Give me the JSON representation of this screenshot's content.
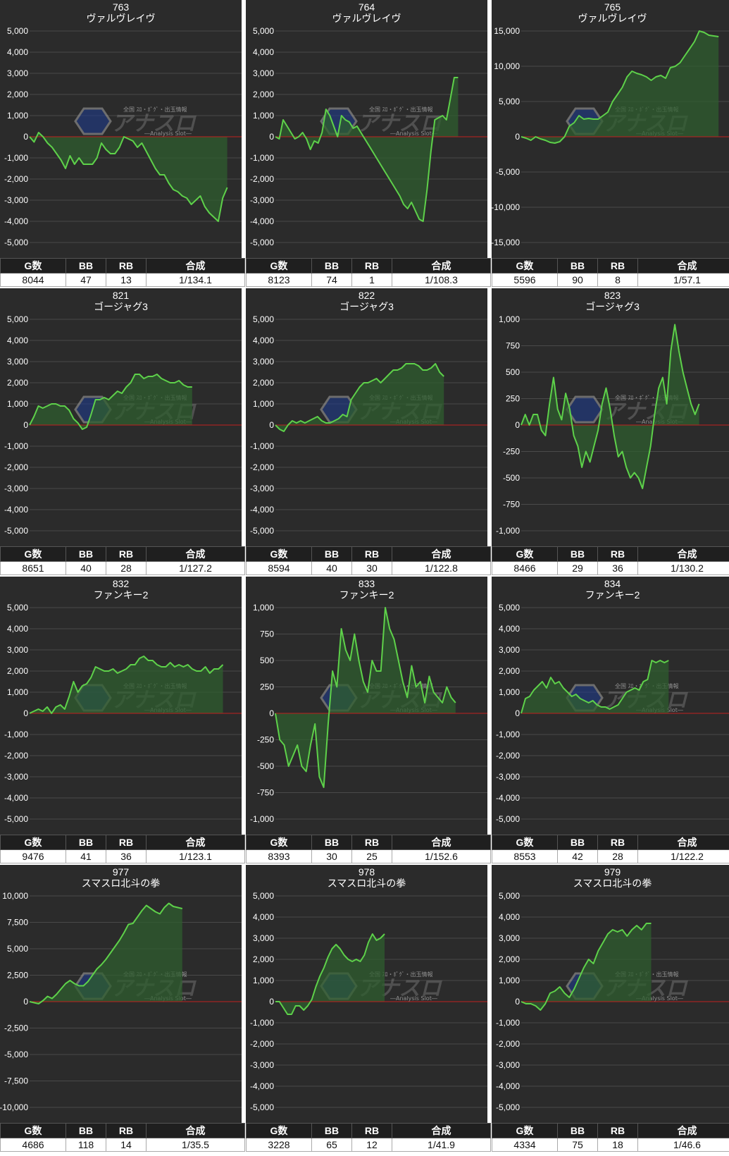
{
  "table_headers": [
    "G数",
    "BB",
    "RB",
    "合成"
  ],
  "watermark": {
    "main": "アナスロ",
    "sub": "―Analysis Slot―",
    "top": "全国 ｽﾛ・ﾎﾟｸﾞ・出玉情報"
  },
  "colors": {
    "line": "#5ed14a",
    "fill": "#2f5e2f",
    "zero_line": "#c0201f",
    "background": "#2b2b2b",
    "grid": "#4a4a4a"
  },
  "chart_data": [
    {
      "type": "area",
      "title": "763",
      "subtitle": "ヴァルヴレイヴ",
      "ylim": [
        -5000,
        5000
      ],
      "yticks": [
        5000,
        4000,
        3000,
        2000,
        1000,
        0,
        -1000,
        -2000,
        -3000,
        -4000,
        -5000
      ],
      "ytick_labels": [
        "5,000",
        "4,000",
        "3,000",
        "2,000",
        "1,000",
        "0",
        "-1,000",
        "-2,000",
        "-3,000",
        "-4,000",
        "-5,000"
      ],
      "series": [
        {
          "values": [
            0,
            -250,
            200,
            0,
            -300,
            -500,
            -800,
            -1100,
            -1500,
            -900,
            -1300,
            -1000,
            -1300,
            -1300,
            -1300,
            -1000,
            -300,
            -600,
            -800,
            -800,
            -500,
            0,
            -100,
            -200,
            -500,
            -300,
            -700,
            -1100,
            -1500,
            -1800,
            -1800,
            -2200,
            -2500,
            -2600,
            -2800,
            -2900,
            -3200,
            -3000,
            -2800,
            -3300,
            -3600,
            -3800,
            -4000,
            -2900,
            -2400
          ]
        }
      ],
      "x_extent": 45,
      "stats": {
        "games": "8044",
        "bb": "47",
        "rb": "13",
        "ratio": "1/134.1"
      }
    },
    {
      "type": "area",
      "title": "764",
      "subtitle": "ヴァルヴレイヴ",
      "ylim": [
        -5000,
        5000
      ],
      "yticks": [
        5000,
        4000,
        3000,
        2000,
        1000,
        0,
        -1000,
        -2000,
        -3000,
        -4000,
        -5000
      ],
      "ytick_labels": [
        "5,000",
        "4,000",
        "3,000",
        "2,000",
        "1,000",
        "0",
        "-1,000",
        "-2,000",
        "-3,000",
        "-4,000",
        "-5,000"
      ],
      "series": [
        {
          "values": [
            0,
            -100,
            800,
            500,
            200,
            -100,
            0,
            200,
            -100,
            -600,
            -200,
            -300,
            200,
            1300,
            1000,
            500,
            0,
            1000,
            800,
            700,
            400,
            500,
            200,
            -100,
            -400,
            -700,
            -1000,
            -1300,
            -1600,
            -1900,
            -2200,
            -2500,
            -2800,
            -3200,
            -3400,
            -3100,
            -3500,
            -3900,
            -4000,
            -2500,
            -700,
            800,
            900,
            1000,
            800,
            1800,
            2800,
            2800
          ]
        }
      ],
      "x_extent": 52,
      "stats": {
        "games": "8123",
        "bb": "74",
        "rb": "1",
        "ratio": "1/108.3"
      }
    },
    {
      "type": "area",
      "title": "765",
      "subtitle": "ヴァルヴレイヴ",
      "ylim": [
        -15000,
        15000
      ],
      "yticks": [
        15000,
        10000,
        5000,
        0,
        -5000,
        -10000,
        -15000
      ],
      "ytick_labels": [
        "15,000",
        "10,000",
        "5,000",
        "0",
        "-5,000",
        "-10,000",
        "-15,000"
      ],
      "series": [
        {
          "values": [
            0,
            -200,
            -500,
            0,
            -300,
            -500,
            -800,
            -900,
            -700,
            0,
            1500,
            2000,
            3000,
            2500,
            2600,
            2500,
            2500,
            3000,
            3500,
            5000,
            6000,
            7000,
            8500,
            9300,
            9000,
            8800,
            8500,
            8000,
            8500,
            8700,
            8300,
            9800,
            10000,
            10500,
            11500,
            12500,
            13500,
            15000,
            14800,
            14400,
            14300,
            14200
          ]
        }
      ],
      "x_extent": 42,
      "stats": {
        "games": "5596",
        "bb": "90",
        "rb": "8",
        "ratio": "1/57.1"
      }
    },
    {
      "type": "area",
      "title": "821",
      "subtitle": "ゴージャグ3",
      "ylim": [
        -5000,
        5000
      ],
      "yticks": [
        5000,
        4000,
        3000,
        2000,
        1000,
        0,
        -1000,
        -2000,
        -3000,
        -4000,
        -5000
      ],
      "ytick_labels": [
        "5,000",
        "4,000",
        "3,000",
        "2,000",
        "1,000",
        "0",
        "-1,000",
        "-2,000",
        "-3,000",
        "-4,000",
        "-5,000"
      ],
      "series": [
        {
          "values": [
            0,
            400,
            900,
            800,
            900,
            1000,
            1000,
            900,
            900,
            700,
            300,
            100,
            -200,
            -100,
            500,
            1200,
            1200,
            1300,
            1200,
            1400,
            1600,
            1500,
            1800,
            2000,
            2400,
            2400,
            2200,
            2300,
            2300,
            2400,
            2200,
            2100,
            2000,
            2000,
            2100,
            1900,
            1800,
            1800
          ]
        }
      ],
      "x_extent": 46,
      "stats": {
        "games": "8651",
        "bb": "40",
        "rb": "28",
        "ratio": "1/127.2"
      }
    },
    {
      "type": "area",
      "title": "822",
      "subtitle": "ゴージャグ3",
      "ylim": [
        -5000,
        5000
      ],
      "yticks": [
        5000,
        4000,
        3000,
        2000,
        1000,
        0,
        -1000,
        -2000,
        -3000,
        -4000,
        -5000
      ],
      "ytick_labels": [
        "5,000",
        "4,000",
        "3,000",
        "2,000",
        "1,000",
        "0",
        "-1,000",
        "-2,000",
        "-3,000",
        "-4,000",
        "-5,000"
      ],
      "series": [
        {
          "values": [
            0,
            -200,
            -300,
            0,
            200,
            100,
            200,
            100,
            200,
            300,
            400,
            200,
            100,
            100,
            200,
            300,
            500,
            400,
            1200,
            1500,
            1800,
            2000,
            2000,
            2100,
            2200,
            2000,
            2200,
            2400,
            2600,
            2600,
            2700,
            2900,
            2900,
            2900,
            2800,
            2600,
            2600,
            2700,
            2900,
            2500,
            2300
          ]
        }
      ],
      "x_extent": 48,
      "stats": {
        "games": "8594",
        "bb": "40",
        "rb": "30",
        "ratio": "1/122.8"
      }
    },
    {
      "type": "line",
      "title": "823",
      "subtitle": "ゴージャグ3",
      "ylim": [
        -1000,
        1000
      ],
      "yticks": [
        1000,
        750,
        500,
        250,
        0,
        -250,
        -500,
        -750,
        -1000
      ],
      "ytick_labels": [
        "1,000",
        "750",
        "500",
        "250",
        "0",
        "-250",
        "-500",
        "-750",
        "-1,000"
      ],
      "series": [
        {
          "values": [
            0,
            100,
            0,
            100,
            100,
            -50,
            -100,
            200,
            450,
            150,
            50,
            300,
            150,
            -100,
            -200,
            -400,
            -250,
            -350,
            -200,
            -50,
            200,
            350,
            150,
            -100,
            -300,
            -250,
            -400,
            -500,
            -450,
            -500,
            -600,
            -400,
            -200,
            100,
            350,
            450,
            200,
            700,
            950,
            700,
            500,
            350,
            200,
            100,
            200
          ]
        }
      ],
      "x_extent": 50,
      "stats": {
        "games": "8466",
        "bb": "29",
        "rb": "36",
        "ratio": "1/130.2"
      }
    },
    {
      "type": "area",
      "title": "832",
      "subtitle": "ファンキー2",
      "ylim": [
        -5000,
        5000
      ],
      "yticks": [
        5000,
        4000,
        3000,
        2000,
        1000,
        0,
        -1000,
        -2000,
        -3000,
        -4000,
        -5000
      ],
      "ytick_labels": [
        "5,000",
        "4,000",
        "3,000",
        "2,000",
        "1,000",
        "0",
        "-1,000",
        "-2,000",
        "-3,000",
        "-4,000",
        "-5,000"
      ],
      "series": [
        {
          "values": [
            0,
            100,
            200,
            100,
            300,
            0,
            300,
            400,
            200,
            800,
            1500,
            1000,
            1300,
            1400,
            1700,
            2200,
            2100,
            2000,
            2000,
            2100,
            1900,
            2000,
            2100,
            2300,
            2300,
            2600,
            2700,
            2500,
            2500,
            2300,
            2200,
            2200,
            2400,
            2200,
            2300,
            2200,
            2300,
            2100,
            2000,
            2000,
            2200,
            1900,
            2100,
            2100,
            2300
          ]
        }
      ],
      "x_extent": 46,
      "stats": {
        "games": "9476",
        "bb": "41",
        "rb": "36",
        "ratio": "1/123.1"
      }
    },
    {
      "type": "line",
      "title": "833",
      "subtitle": "ファンキー2",
      "ylim": [
        -1000,
        1000
      ],
      "yticks": [
        1000,
        750,
        500,
        250,
        0,
        -250,
        -500,
        -750,
        -1000
      ],
      "ytick_labels": [
        "1,000",
        "750",
        "500",
        "250",
        "0",
        "-250",
        "-500",
        "-750",
        "-1,000"
      ],
      "series": [
        {
          "values": [
            0,
            -250,
            -300,
            -500,
            -400,
            -300,
            -500,
            -550,
            -300,
            -100,
            -600,
            -700,
            -100,
            400,
            250,
            800,
            600,
            500,
            750,
            500,
            300,
            200,
            500,
            400,
            400,
            1000,
            800,
            700,
            500,
            300,
            150,
            450,
            250,
            300,
            100,
            350,
            200,
            150,
            100,
            250,
            150,
            100
          ]
        }
      ],
      "x_extent": 46,
      "stats": {
        "games": "8393",
        "bb": "30",
        "rb": "25",
        "ratio": "1/152.6"
      }
    },
    {
      "type": "area",
      "title": "834",
      "subtitle": "ファンキー2",
      "ylim": [
        -5000,
        5000
      ],
      "yticks": [
        5000,
        4000,
        3000,
        2000,
        1000,
        0,
        -1000,
        -2000,
        -3000,
        -4000,
        -5000
      ],
      "ytick_labels": [
        "5,000",
        "4,000",
        "3,000",
        "2,000",
        "1,000",
        "0",
        "-1,000",
        "-2,000",
        "-3,000",
        "-4,000",
        "-5,000"
      ],
      "series": [
        {
          "values": [
            0,
            700,
            800,
            1100,
            1300,
            1500,
            1200,
            1700,
            1400,
            1500,
            1200,
            1000,
            800,
            900,
            700,
            600,
            500,
            600,
            400,
            300,
            300,
            200,
            300,
            400,
            700,
            1000,
            1100,
            1200,
            1100,
            1500,
            1600,
            2500,
            2400,
            2500,
            2400,
            2500
          ]
        }
      ],
      "x_extent": 48,
      "stats": {
        "games": "8553",
        "bb": "42",
        "rb": "28",
        "ratio": "1/122.2"
      }
    },
    {
      "type": "area",
      "title": "977",
      "subtitle": "スマスロ北斗の拳",
      "ylim": [
        -10000,
        10000
      ],
      "yticks": [
        10000,
        7500,
        5000,
        2500,
        0,
        -2500,
        -5000,
        -7500,
        -10000
      ],
      "ytick_labels": [
        "10,000",
        "7,500",
        "5,000",
        "2,500",
        "0",
        "-2,500",
        "-5,000",
        "-7,500",
        "-10,000"
      ],
      "series": [
        {
          "values": [
            0,
            -100,
            -200,
            100,
            500,
            300,
            700,
            1200,
            1700,
            2000,
            1700,
            1500,
            1500,
            1900,
            2500,
            3100,
            3500,
            4000,
            4600,
            5200,
            5800,
            6500,
            7300,
            7400,
            8000,
            8600,
            9100,
            8800,
            8500,
            8300,
            8900,
            9300,
            9000,
            8900,
            8800
          ]
        }
      ],
      "x_extent": 45,
      "stats": {
        "games": "4686",
        "bb": "118",
        "rb": "14",
        "ratio": "1/35.5"
      }
    },
    {
      "type": "area",
      "title": "978",
      "subtitle": "スマスロ北斗の拳",
      "ylim": [
        -5000,
        5000
      ],
      "yticks": [
        5000,
        4000,
        3000,
        2000,
        1000,
        0,
        -1000,
        -2000,
        -3000,
        -4000,
        -5000
      ],
      "ytick_labels": [
        "5,000",
        "4,000",
        "3,000",
        "2,000",
        "1,000",
        "0",
        "-1,000",
        "-2,000",
        "-3,000",
        "-4,000",
        "-5,000"
      ],
      "series": [
        {
          "values": [
            0,
            0,
            -300,
            -600,
            -600,
            -200,
            -200,
            -400,
            -200,
            100,
            700,
            1200,
            1600,
            2100,
            2500,
            2700,
            2500,
            2200,
            2000,
            1900,
            2000,
            1900,
            2200,
            2800,
            3200,
            2900,
            3000,
            3200
          ]
        }
      ],
      "x_extent": 50,
      "stats": {
        "games": "3228",
        "bb": "65",
        "rb": "12",
        "ratio": "1/41.9"
      }
    },
    {
      "type": "area",
      "title": "979",
      "subtitle": "スマスロ北斗の拳",
      "ylim": [
        -5000,
        5000
      ],
      "yticks": [
        5000,
        4000,
        3000,
        2000,
        1000,
        0,
        -1000,
        -2000,
        -3000,
        -4000,
        -5000
      ],
      "ytick_labels": [
        "5,000",
        "4,000",
        "3,000",
        "2,000",
        "1,000",
        "0",
        "-1,000",
        "-2,000",
        "-3,000",
        "-4,000",
        "-5,000"
      ],
      "series": [
        {
          "values": [
            0,
            -100,
            -100,
            -200,
            -400,
            -100,
            400,
            500,
            700,
            400,
            200,
            600,
            1100,
            1600,
            2000,
            1800,
            2400,
            2800,
            3200,
            3400,
            3300,
            3400,
            3100,
            3400,
            3600,
            3400,
            3700,
            3700
          ]
        }
      ],
      "x_extent": 42,
      "stats": {
        "games": "4334",
        "bb": "75",
        "rb": "18",
        "ratio": "1/46.6"
      }
    }
  ]
}
